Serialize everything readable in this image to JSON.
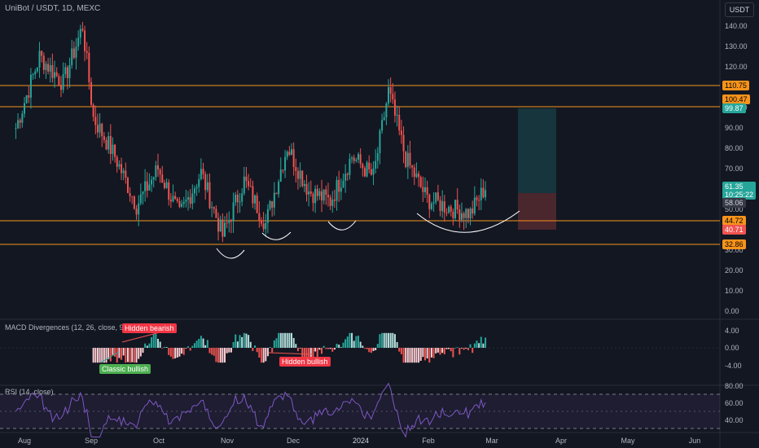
{
  "header": {
    "symbol_title": "UniBot / USDT, 1D, MEXC",
    "currency": "USDT"
  },
  "price_axis": {
    "ticks": [
      "140.00",
      "130.00",
      "120.00",
      "110.00",
      "100.00",
      "90.00",
      "80.00",
      "70.00",
      "60.00",
      "50.00",
      "40.00",
      "30.00",
      "20.00",
      "10.00",
      "0.00"
    ]
  },
  "price_badges": {
    "resistance_1": "110.75",
    "resistance_2": "100.47",
    "target": "99.87",
    "last_price": "61.35",
    "countdown": "10:25:22",
    "entry": "58.06",
    "support_1": "44.72",
    "stop": "40.71",
    "support_2": "32.86"
  },
  "colors": {
    "background": "#131722",
    "up": "#26a69a",
    "down": "#ef5350",
    "level_line": "#f7931a",
    "rsi_line": "#7e57c2"
  },
  "macd": {
    "label": "MACD Divergences (12, 26, close, 9)",
    "ticks": [
      "4.00",
      "0.00",
      "-4.00"
    ],
    "annotations": {
      "hidden_bearish": "Hidden bearish",
      "hidden_bullish": "Hidden bullish",
      "classic_bullish": "Classic bullish"
    }
  },
  "rsi": {
    "label": "RSI (14, close)",
    "ticks": [
      "80.00",
      "60.00",
      "40.00"
    ]
  },
  "time_axis": {
    "labels": [
      "Aug",
      "Sep",
      "Oct",
      "Nov",
      "Dec",
      "2024",
      "Feb",
      "Mar",
      "Apr",
      "May",
      "Jun"
    ]
  },
  "chart_data": {
    "type": "candlestick",
    "title": "UniBot / USDT, 1D, MEXC",
    "ylim": [
      0,
      145
    ],
    "price_levels": [
      110.75,
      100.47,
      44.72,
      32.86
    ],
    "long_position": {
      "target": 99.87,
      "entry": 58.06,
      "stop": 40.71
    },
    "close_path": [
      {
        "x": "2023-07-28",
        "y": 90
      },
      {
        "x": "2023-08-08",
        "y": 125
      },
      {
        "x": "2023-08-19",
        "y": 112
      },
      {
        "x": "2023-08-28",
        "y": 140
      },
      {
        "x": "2023-09-02",
        "y": 95
      },
      {
        "x": "2023-09-12",
        "y": 76
      },
      {
        "x": "2023-09-22",
        "y": 52
      },
      {
        "x": "2023-10-02",
        "y": 70
      },
      {
        "x": "2023-10-12",
        "y": 47
      },
      {
        "x": "2023-10-22",
        "y": 68
      },
      {
        "x": "2023-11-01",
        "y": 37
      },
      {
        "x": "2023-11-11",
        "y": 64
      },
      {
        "x": "2023-11-21",
        "y": 43
      },
      {
        "x": "2023-12-01",
        "y": 81
      },
      {
        "x": "2023-12-11",
        "y": 59
      },
      {
        "x": "2023-12-21",
        "y": 54
      },
      {
        "x": "2023-12-31",
        "y": 76
      },
      {
        "x": "2024-01-10",
        "y": 66
      },
      {
        "x": "2024-01-17",
        "y": 108
      },
      {
        "x": "2024-01-25",
        "y": 75
      },
      {
        "x": "2024-02-04",
        "y": 55
      },
      {
        "x": "2024-02-14",
        "y": 51
      },
      {
        "x": "2024-02-24",
        "y": 48
      },
      {
        "x": "2024-03-02",
        "y": 61
      }
    ]
  }
}
